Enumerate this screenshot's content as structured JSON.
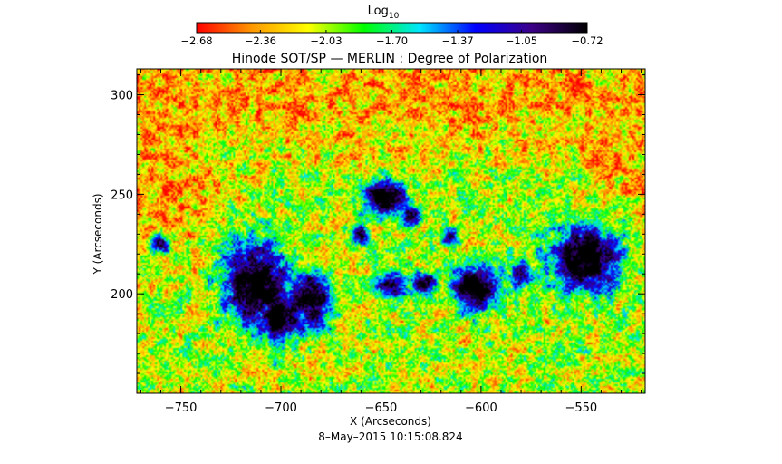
{
  "chart_data": {
    "type": "heatmap",
    "title": "Hinode SOT/SP — MERLIN : Degree of Polarization",
    "xlabel": "X (Arcseconds)",
    "ylabel": "Y (Arcseconds)",
    "footer": "8–May–2015 10:15:08.824",
    "xlim": [
      -772,
      -518
    ],
    "ylim": [
      150,
      313
    ],
    "xticks": [
      -750,
      -700,
      -650,
      -600,
      -550
    ],
    "xtick_labels": [
      "−750",
      "−700",
      "−650",
      "−600",
      "−550"
    ],
    "yticks": [
      200,
      250,
      300
    ],
    "ytick_labels": [
      "200",
      "250",
      "300"
    ],
    "colorbar": {
      "label_main": "Log",
      "label_sub": "10",
      "range": [
        -2.68,
        -0.72
      ],
      "ticks": [
        -2.68,
        -2.36,
        -2.03,
        -1.7,
        -1.37,
        -1.05,
        -0.72
      ],
      "tick_labels": [
        "−2.68",
        "−2.36",
        "−2.03",
        "−1.70",
        "−1.37",
        "−1.05",
        "−0.72"
      ],
      "colormap": [
        "#ff0000",
        "#ff9900",
        "#ffff00",
        "#00ff00",
        "#00e5ff",
        "#0000ff",
        "#3c0088",
        "#000000"
      ]
    },
    "features": [
      {
        "x": -713,
        "y": 205,
        "sx": 11,
        "sy": 14,
        "v": -0.85
      },
      {
        "x": -700,
        "y": 188,
        "sx": 9,
        "sy": 7,
        "v": -0.88
      },
      {
        "x": -685,
        "y": 197,
        "sx": 7,
        "sy": 9,
        "v": -0.92
      },
      {
        "x": -648,
        "y": 248,
        "sx": 7,
        "sy": 6,
        "v": -0.9
      },
      {
        "x": -635,
        "y": 240,
        "sx": 4,
        "sy": 4,
        "v": -1.05
      },
      {
        "x": -645,
        "y": 205,
        "sx": 6,
        "sy": 5,
        "v": -1.0
      },
      {
        "x": -628,
        "y": 205,
        "sx": 5,
        "sy": 4,
        "v": -1.05
      },
      {
        "x": -603,
        "y": 203,
        "sx": 8,
        "sy": 8,
        "v": -0.88
      },
      {
        "x": -580,
        "y": 210,
        "sx": 4,
        "sy": 5,
        "v": -1.1
      },
      {
        "x": -548,
        "y": 218,
        "sx": 12,
        "sy": 11,
        "v": -0.8
      },
      {
        "x": -760,
        "y": 225,
        "sx": 3,
        "sy": 3,
        "v": -1.05
      },
      {
        "x": -660,
        "y": 230,
        "sx": 3,
        "sy": 3,
        "v": -1.1
      },
      {
        "x": -615,
        "y": 228,
        "sx": 3,
        "sy": 3,
        "v": -1.1
      }
    ]
  }
}
